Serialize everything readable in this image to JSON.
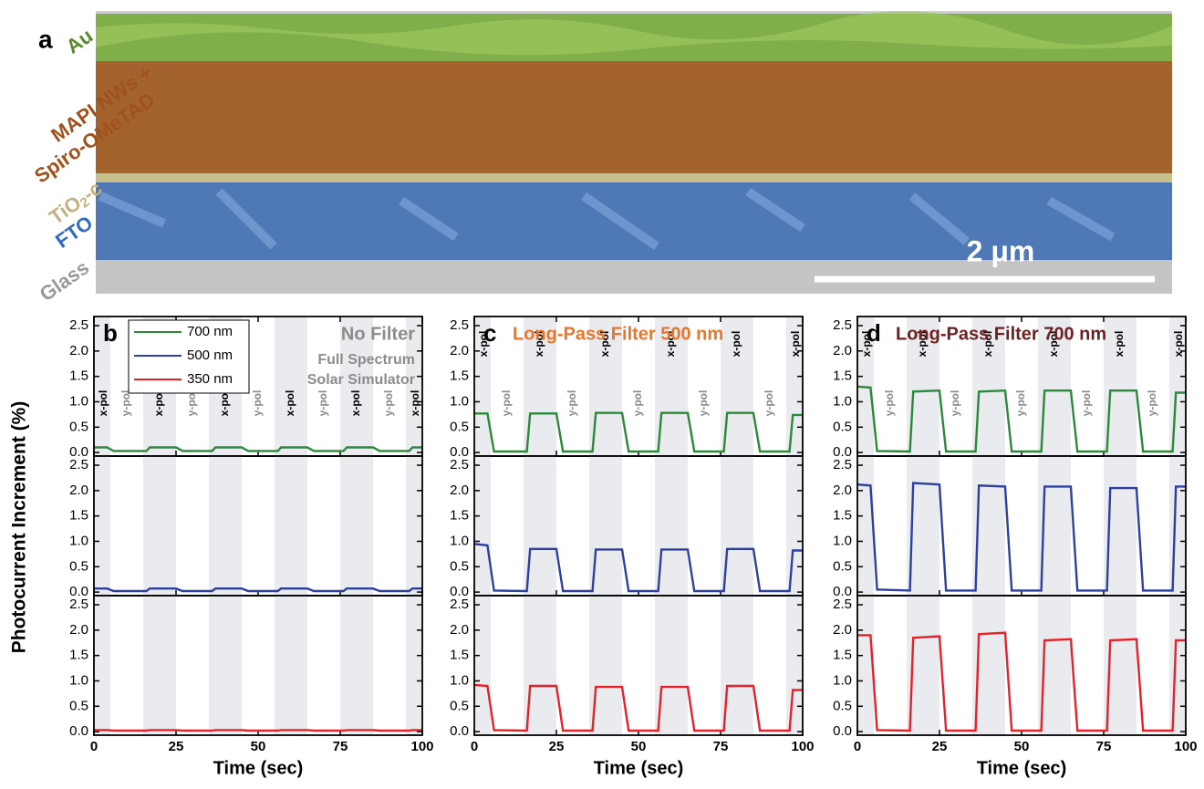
{
  "panel_a": {
    "label": "a",
    "au": "Au",
    "mapi": "MAPI NWs +",
    "spiro": "Spiro-OMeTAD",
    "tio": "TiO",
    "tio_sub": "2",
    "tio_c": "-c",
    "fto": "FTO",
    "glass": "Glass",
    "scale_bar": "2 μm"
  },
  "y_label": "Photocurrent Increment (%)",
  "chart_data": [
    {
      "type": "line",
      "label": "b",
      "title": "No Filter",
      "subtitle": [
        "Full Spectrum",
        "Solar Simulator"
      ],
      "title_color": "#8c8c8c",
      "legend": true,
      "xlabel": "Time (sec)",
      "xlim": [
        0,
        100
      ],
      "xticks": [
        0,
        25,
        50,
        75,
        100
      ],
      "ylim": [
        -0.07,
        2.68
      ],
      "yticks": [
        {
          "value": 0,
          "label": "0.0"
        },
        {
          "value": 0.5,
          "label": "0.5"
        },
        {
          "value": 1,
          "label": "1.0"
        },
        {
          "value": 1.5,
          "label": "1.5"
        },
        {
          "value": 2,
          "label": "2.0"
        },
        {
          "value": 2.5,
          "label": "2.5"
        }
      ],
      "bands": [
        [
          0,
          5
        ],
        [
          15,
          25
        ],
        [
          35,
          45
        ],
        [
          55,
          65
        ],
        [
          75,
          85
        ],
        [
          95,
          100
        ]
      ],
      "annotations": [
        {
          "text": "x-pol",
          "x": 3
        },
        {
          "text": "y-pol",
          "x": 10
        },
        {
          "text": "x-pol",
          "x": 20
        },
        {
          "text": "y-pol",
          "x": 30
        },
        {
          "text": "x-pol",
          "x": 40
        },
        {
          "text": "y-pol",
          "x": 50
        },
        {
          "text": "x-pol",
          "x": 60
        },
        {
          "text": "y-pol",
          "x": 70
        },
        {
          "text": "x-pol",
          "x": 80
        },
        {
          "text": "y-pol",
          "x": 90
        },
        {
          "text": "x-pol",
          "x": 98
        }
      ],
      "x": [
        0,
        4,
        6,
        16,
        17,
        25,
        27,
        36,
        37,
        45,
        47,
        56,
        57,
        65,
        67,
        76,
        77,
        85,
        87,
        96,
        97,
        100
      ],
      "series": [
        {
          "name": "700 nm",
          "color": "#2a8a3a",
          "values": [
            0.1,
            0.1,
            0.03,
            0.03,
            0.1,
            0.1,
            0.03,
            0.03,
            0.1,
            0.1,
            0.03,
            0.03,
            0.1,
            0.1,
            0.03,
            0.03,
            0.1,
            0.1,
            0.03,
            0.03,
            0.1,
            0.1
          ]
        },
        {
          "name": "500 nm",
          "color": "#2f3fa0",
          "values": [
            0.07,
            0.07,
            0.02,
            0.02,
            0.07,
            0.07,
            0.02,
            0.02,
            0.07,
            0.07,
            0.02,
            0.02,
            0.07,
            0.07,
            0.02,
            0.02,
            0.07,
            0.07,
            0.02,
            0.02,
            0.07,
            0.07
          ]
        },
        {
          "name": "350 nm",
          "color": "#e8202a",
          "values": [
            0.03,
            0.03,
            0.02,
            0.02,
            0.03,
            0.03,
            0.02,
            0.02,
            0.03,
            0.03,
            0.02,
            0.02,
            0.03,
            0.03,
            0.02,
            0.02,
            0.03,
            0.03,
            0.02,
            0.02,
            0.03,
            0.03
          ]
        }
      ]
    },
    {
      "type": "line",
      "label": "c",
      "title": "Long-Pass Filter 500 nm",
      "title_color": "#e8762a",
      "xlabel": "Time (sec)",
      "xlim": [
        0,
        100
      ],
      "xticks": [
        0,
        25,
        50,
        75,
        100
      ],
      "ylim": [
        -0.07,
        2.68
      ],
      "yticks": [
        {
          "value": 0,
          "label": "0.0"
        },
        {
          "value": 0.5,
          "label": "0.5"
        },
        {
          "value": 1,
          "label": "1.0"
        },
        {
          "value": 1.5,
          "label": "1.5"
        },
        {
          "value": 2,
          "label": "2.0"
        },
        {
          "value": 2.5,
          "label": "2.5"
        }
      ],
      "bands": [
        [
          0,
          5
        ],
        [
          15,
          25
        ],
        [
          35,
          45
        ],
        [
          55,
          65
        ],
        [
          75,
          85
        ],
        [
          95,
          100
        ]
      ],
      "annotations": [
        {
          "text": "x-pol",
          "x": 3
        },
        {
          "text": "y-pol",
          "x": 10
        },
        {
          "text": "x-pol",
          "x": 20
        },
        {
          "text": "y-pol",
          "x": 30
        },
        {
          "text": "x-pol",
          "x": 40
        },
        {
          "text": "y-pol",
          "x": 50
        },
        {
          "text": "x-pol",
          "x": 60
        },
        {
          "text": "y-pol",
          "x": 70
        },
        {
          "text": "x-pol",
          "x": 80
        },
        {
          "text": "y-pol",
          "x": 90
        },
        {
          "text": "x-pol",
          "x": 98
        }
      ],
      "x": [
        0,
        4,
        6,
        16,
        17,
        25,
        27,
        36,
        37,
        45,
        47,
        56,
        57,
        65,
        67,
        76,
        77,
        85,
        87,
        96,
        97,
        100
      ],
      "series": [
        {
          "color": "#2a8a3a",
          "values": [
            0.77,
            0.77,
            0.02,
            0.02,
            0.77,
            0.77,
            0.02,
            0.02,
            0.78,
            0.78,
            0.02,
            0.02,
            0.78,
            0.78,
            0.02,
            0.02,
            0.78,
            0.78,
            0.02,
            0.02,
            0.74,
            0.74
          ]
        },
        {
          "color": "#2f3fa0",
          "values": [
            0.95,
            0.92,
            0.03,
            0.02,
            0.85,
            0.85,
            0.02,
            0.02,
            0.84,
            0.84,
            0.02,
            0.02,
            0.84,
            0.84,
            0.02,
            0.02,
            0.85,
            0.85,
            0.02,
            0.02,
            0.82,
            0.82
          ]
        },
        {
          "color": "#e8202a",
          "values": [
            0.92,
            0.9,
            0.03,
            0.02,
            0.9,
            0.9,
            0.02,
            0.02,
            0.88,
            0.88,
            0.02,
            0.02,
            0.88,
            0.88,
            0.02,
            0.02,
            0.9,
            0.9,
            0.02,
            0.02,
            0.82,
            0.82
          ]
        }
      ]
    },
    {
      "type": "line",
      "label": "d",
      "title": "Long-Pass Filter 700 nm",
      "title_color": "#6e1f22",
      "xlabel": "Time (sec)",
      "xlim": [
        0,
        100
      ],
      "xticks": [
        0,
        25,
        50,
        75,
        100
      ],
      "ylim": [
        -0.07,
        2.68
      ],
      "yticks": [
        {
          "value": 0,
          "label": "0.0"
        },
        {
          "value": 0.5,
          "label": "0.5"
        },
        {
          "value": 1,
          "label": "1.0"
        },
        {
          "value": 1.5,
          "label": "1.5"
        },
        {
          "value": 2,
          "label": "2.0"
        },
        {
          "value": 2.5,
          "label": "2.5"
        }
      ],
      "bands": [
        [
          0,
          5
        ],
        [
          15,
          25
        ],
        [
          35,
          45
        ],
        [
          55,
          65
        ],
        [
          75,
          85
        ],
        [
          95,
          100
        ]
      ],
      "annotations": [
        {
          "text": "x-pol",
          "x": 3
        },
        {
          "text": "y-pol",
          "x": 10
        },
        {
          "text": "x-pol",
          "x": 20
        },
        {
          "text": "y-pol",
          "x": 30
        },
        {
          "text": "x-pol",
          "x": 40
        },
        {
          "text": "y-pol",
          "x": 50
        },
        {
          "text": "x-pol",
          "x": 60
        },
        {
          "text": "y-pol",
          "x": 70
        },
        {
          "text": "x-pol",
          "x": 80
        },
        {
          "text": "y-pol",
          "x": 90
        },
        {
          "text": "x-pol",
          "x": 98
        }
      ],
      "x": [
        0,
        4,
        6,
        16,
        17,
        25,
        27,
        36,
        37,
        45,
        47,
        56,
        57,
        65,
        67,
        76,
        77,
        85,
        87,
        96,
        97,
        100
      ],
      "series": [
        {
          "color": "#2a8a3a",
          "values": [
            1.3,
            1.28,
            0.03,
            0.02,
            1.2,
            1.22,
            0.02,
            0.02,
            1.2,
            1.22,
            0.02,
            0.02,
            1.22,
            1.22,
            0.02,
            0.02,
            1.22,
            1.22,
            0.02,
            0.02,
            1.18,
            1.18
          ]
        },
        {
          "color": "#2f3fa0",
          "values": [
            2.12,
            2.1,
            0.05,
            0.03,
            2.15,
            2.12,
            0.03,
            0.03,
            2.1,
            2.08,
            0.03,
            0.03,
            2.08,
            2.08,
            0.03,
            0.03,
            2.05,
            2.05,
            0.03,
            0.03,
            2.08,
            2.08
          ]
        },
        {
          "color": "#e8202a",
          "values": [
            1.9,
            1.9,
            0.03,
            0.02,
            1.85,
            1.88,
            0.02,
            0.02,
            1.92,
            1.95,
            0.02,
            0.02,
            1.8,
            1.82,
            0.02,
            0.02,
            1.8,
            1.82,
            0.02,
            0.02,
            1.8,
            1.8
          ]
        }
      ]
    }
  ]
}
